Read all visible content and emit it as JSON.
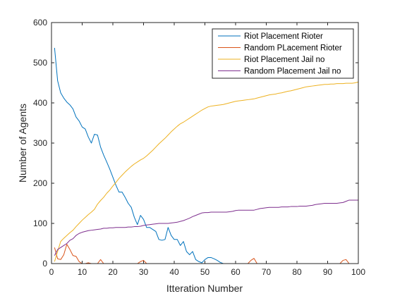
{
  "chart_data": {
    "type": "line",
    "title": "",
    "xlabel": "Itteration Number",
    "ylabel": "Number of Agents",
    "xlim": [
      0,
      100
    ],
    "ylim": [
      0,
      600
    ],
    "xticks": [
      0,
      10,
      20,
      30,
      40,
      50,
      60,
      70,
      80,
      90,
      100
    ],
    "yticks": [
      0,
      100,
      200,
      300,
      400,
      500,
      600
    ],
    "grid": false,
    "legend_position": "top-right",
    "series": [
      {
        "name": "Riot Placement Rioter",
        "color": "#0072BD",
        "x": [
          1,
          2,
          3,
          4,
          5,
          6,
          7,
          8,
          9,
          10,
          11,
          12,
          13,
          14,
          15,
          16,
          17,
          18,
          19,
          20,
          21,
          22,
          23,
          24,
          25,
          26,
          27,
          28,
          29,
          30,
          31,
          32,
          33,
          34,
          35,
          36,
          37,
          38,
          39,
          40,
          41,
          42,
          43,
          44,
          45,
          46,
          47,
          48,
          49,
          50,
          51,
          52,
          53,
          54,
          55,
          56,
          57,
          58,
          59,
          60,
          61,
          62,
          63,
          64,
          65,
          66,
          67,
          68,
          69,
          70,
          71,
          72,
          73,
          74,
          75,
          76,
          77,
          78,
          79,
          80,
          81,
          82,
          83,
          84,
          85,
          86,
          87,
          88,
          89,
          90,
          91,
          92,
          93,
          94,
          95,
          96,
          97,
          98,
          99,
          100
        ],
        "y": [
          537,
          455,
          425,
          412,
          402,
          395,
          385,
          365,
          355,
          340,
          335,
          315,
          300,
          322,
          320,
          290,
          270,
          253,
          235,
          215,
          195,
          178,
          178,
          165,
          150,
          140,
          115,
          97,
          120,
          110,
          90,
          90,
          85,
          80,
          60,
          58,
          60,
          90,
          70,
          60,
          60,
          45,
          55,
          30,
          22,
          30,
          10,
          5,
          2,
          10,
          15,
          15,
          12,
          8,
          3,
          0,
          0,
          0,
          0,
          0,
          0,
          0,
          0,
          0,
          0,
          0,
          0,
          0,
          0,
          0,
          0,
          0,
          0,
          0,
          0,
          0,
          0,
          0,
          0,
          0,
          0,
          0,
          0,
          0,
          0,
          0,
          0,
          0,
          0,
          0,
          0,
          0,
          0,
          0,
          0,
          0,
          0,
          0,
          0,
          0
        ]
      },
      {
        "name": "Random PLacement Rioter",
        "color": "#D95319",
        "x": [
          1,
          2,
          3,
          4,
          5,
          6,
          7,
          8,
          9,
          10,
          11,
          12,
          13,
          14,
          15,
          16,
          17,
          18,
          19,
          20,
          21,
          22,
          23,
          24,
          25,
          26,
          27,
          28,
          29,
          30,
          31,
          32,
          33,
          34,
          35,
          36,
          37,
          38,
          39,
          40,
          41,
          42,
          43,
          44,
          45,
          46,
          47,
          48,
          49,
          50,
          51,
          52,
          53,
          54,
          55,
          56,
          57,
          58,
          59,
          60,
          61,
          62,
          63,
          64,
          65,
          66,
          67,
          68,
          69,
          70,
          71,
          72,
          73,
          74,
          75,
          76,
          77,
          78,
          79,
          80,
          81,
          82,
          83,
          84,
          85,
          86,
          87,
          88,
          89,
          90,
          91,
          92,
          93,
          94,
          95,
          96,
          97,
          98,
          99,
          100
        ],
        "y": [
          40,
          12,
          10,
          22,
          48,
          35,
          20,
          18,
          5,
          0,
          0,
          2,
          0,
          0,
          0,
          10,
          0,
          0,
          0,
          0,
          0,
          0,
          0,
          0,
          0,
          0,
          0,
          0,
          5,
          8,
          0,
          0,
          0,
          0,
          0,
          0,
          0,
          0,
          0,
          0,
          0,
          0,
          0,
          0,
          0,
          0,
          0,
          0,
          0,
          0,
          0,
          0,
          0,
          0,
          0,
          0,
          0,
          0,
          0,
          0,
          0,
          0,
          0,
          0,
          8,
          13,
          0,
          0,
          0,
          0,
          0,
          0,
          0,
          0,
          0,
          0,
          0,
          0,
          0,
          0,
          0,
          0,
          0,
          0,
          0,
          0,
          0,
          0,
          0,
          0,
          0,
          0,
          0,
          0,
          8,
          10,
          0,
          0,
          0,
          0
        ]
      },
      {
        "name": "Riot Placement Jail no",
        "color": "#EDB120",
        "x": [
          1,
          2,
          3,
          4,
          5,
          6,
          7,
          8,
          9,
          10,
          11,
          12,
          13,
          14,
          15,
          16,
          17,
          18,
          19,
          20,
          21,
          22,
          23,
          24,
          25,
          26,
          27,
          28,
          29,
          30,
          31,
          32,
          33,
          34,
          35,
          36,
          37,
          38,
          39,
          40,
          41,
          42,
          43,
          44,
          45,
          46,
          47,
          48,
          49,
          50,
          51,
          52,
          53,
          54,
          55,
          56,
          57,
          58,
          59,
          60,
          61,
          62,
          63,
          64,
          65,
          66,
          67,
          68,
          69,
          70,
          71,
          72,
          73,
          74,
          75,
          76,
          77,
          78,
          79,
          80,
          81,
          82,
          83,
          84,
          85,
          86,
          87,
          88,
          89,
          90,
          91,
          92,
          93,
          94,
          95,
          96,
          97,
          98,
          99,
          100
        ],
        "y": [
          5,
          30,
          55,
          63,
          70,
          77,
          83,
          92,
          100,
          108,
          115,
          122,
          128,
          135,
          148,
          157,
          165,
          175,
          183,
          193,
          202,
          212,
          220,
          228,
          235,
          242,
          248,
          253,
          258,
          262,
          268,
          275,
          282,
          290,
          298,
          305,
          312,
          320,
          328,
          335,
          342,
          348,
          352,
          357,
          362,
          367,
          372,
          377,
          382,
          386,
          390,
          392,
          393,
          394,
          395,
          396,
          398,
          400,
          402,
          404,
          405,
          406,
          407,
          408,
          409,
          410,
          412,
          414,
          416,
          418,
          420,
          421,
          422,
          424,
          425,
          427,
          429,
          430,
          432,
          434,
          436,
          438,
          440,
          441,
          442,
          443,
          444,
          445,
          446,
          446,
          447,
          447,
          448,
          448,
          448,
          449,
          449,
          449,
          450,
          452
        ]
      },
      {
        "name": "Random Placement Jail no",
        "color": "#7E2F8E",
        "x": [
          1,
          2,
          3,
          4,
          5,
          6,
          7,
          8,
          9,
          10,
          11,
          12,
          13,
          14,
          15,
          16,
          17,
          18,
          19,
          20,
          21,
          22,
          23,
          24,
          25,
          26,
          27,
          28,
          29,
          30,
          31,
          32,
          33,
          34,
          35,
          36,
          37,
          38,
          39,
          40,
          41,
          42,
          43,
          44,
          45,
          46,
          47,
          48,
          49,
          50,
          51,
          52,
          53,
          54,
          55,
          56,
          57,
          58,
          59,
          60,
          61,
          62,
          63,
          64,
          65,
          66,
          67,
          68,
          69,
          70,
          71,
          72,
          73,
          74,
          75,
          76,
          77,
          78,
          79,
          80,
          81,
          82,
          83,
          84,
          85,
          86,
          87,
          88,
          89,
          90,
          91,
          92,
          93,
          94,
          95,
          96,
          97,
          98,
          99,
          100
        ],
        "y": [
          20,
          35,
          40,
          45,
          50,
          58,
          62,
          70,
          75,
          78,
          80,
          82,
          83,
          84,
          85,
          86,
          88,
          88,
          89,
          89,
          90,
          90,
          90,
          90,
          91,
          91,
          92,
          92,
          93,
          95,
          96,
          97,
          98,
          99,
          100,
          100,
          100,
          100,
          101,
          102,
          103,
          105,
          107,
          110,
          113,
          117,
          120,
          123,
          126,
          127,
          127,
          128,
          128,
          128,
          128,
          128,
          128,
          129,
          130,
          132,
          133,
          133,
          133,
          133,
          133,
          133,
          135,
          137,
          138,
          139,
          140,
          140,
          140,
          140,
          141,
          141,
          141,
          142,
          142,
          142,
          143,
          143,
          143,
          144,
          145,
          147,
          148,
          149,
          150,
          150,
          150,
          150,
          150,
          151,
          152,
          155,
          158,
          158,
          158,
          158
        ]
      }
    ]
  }
}
